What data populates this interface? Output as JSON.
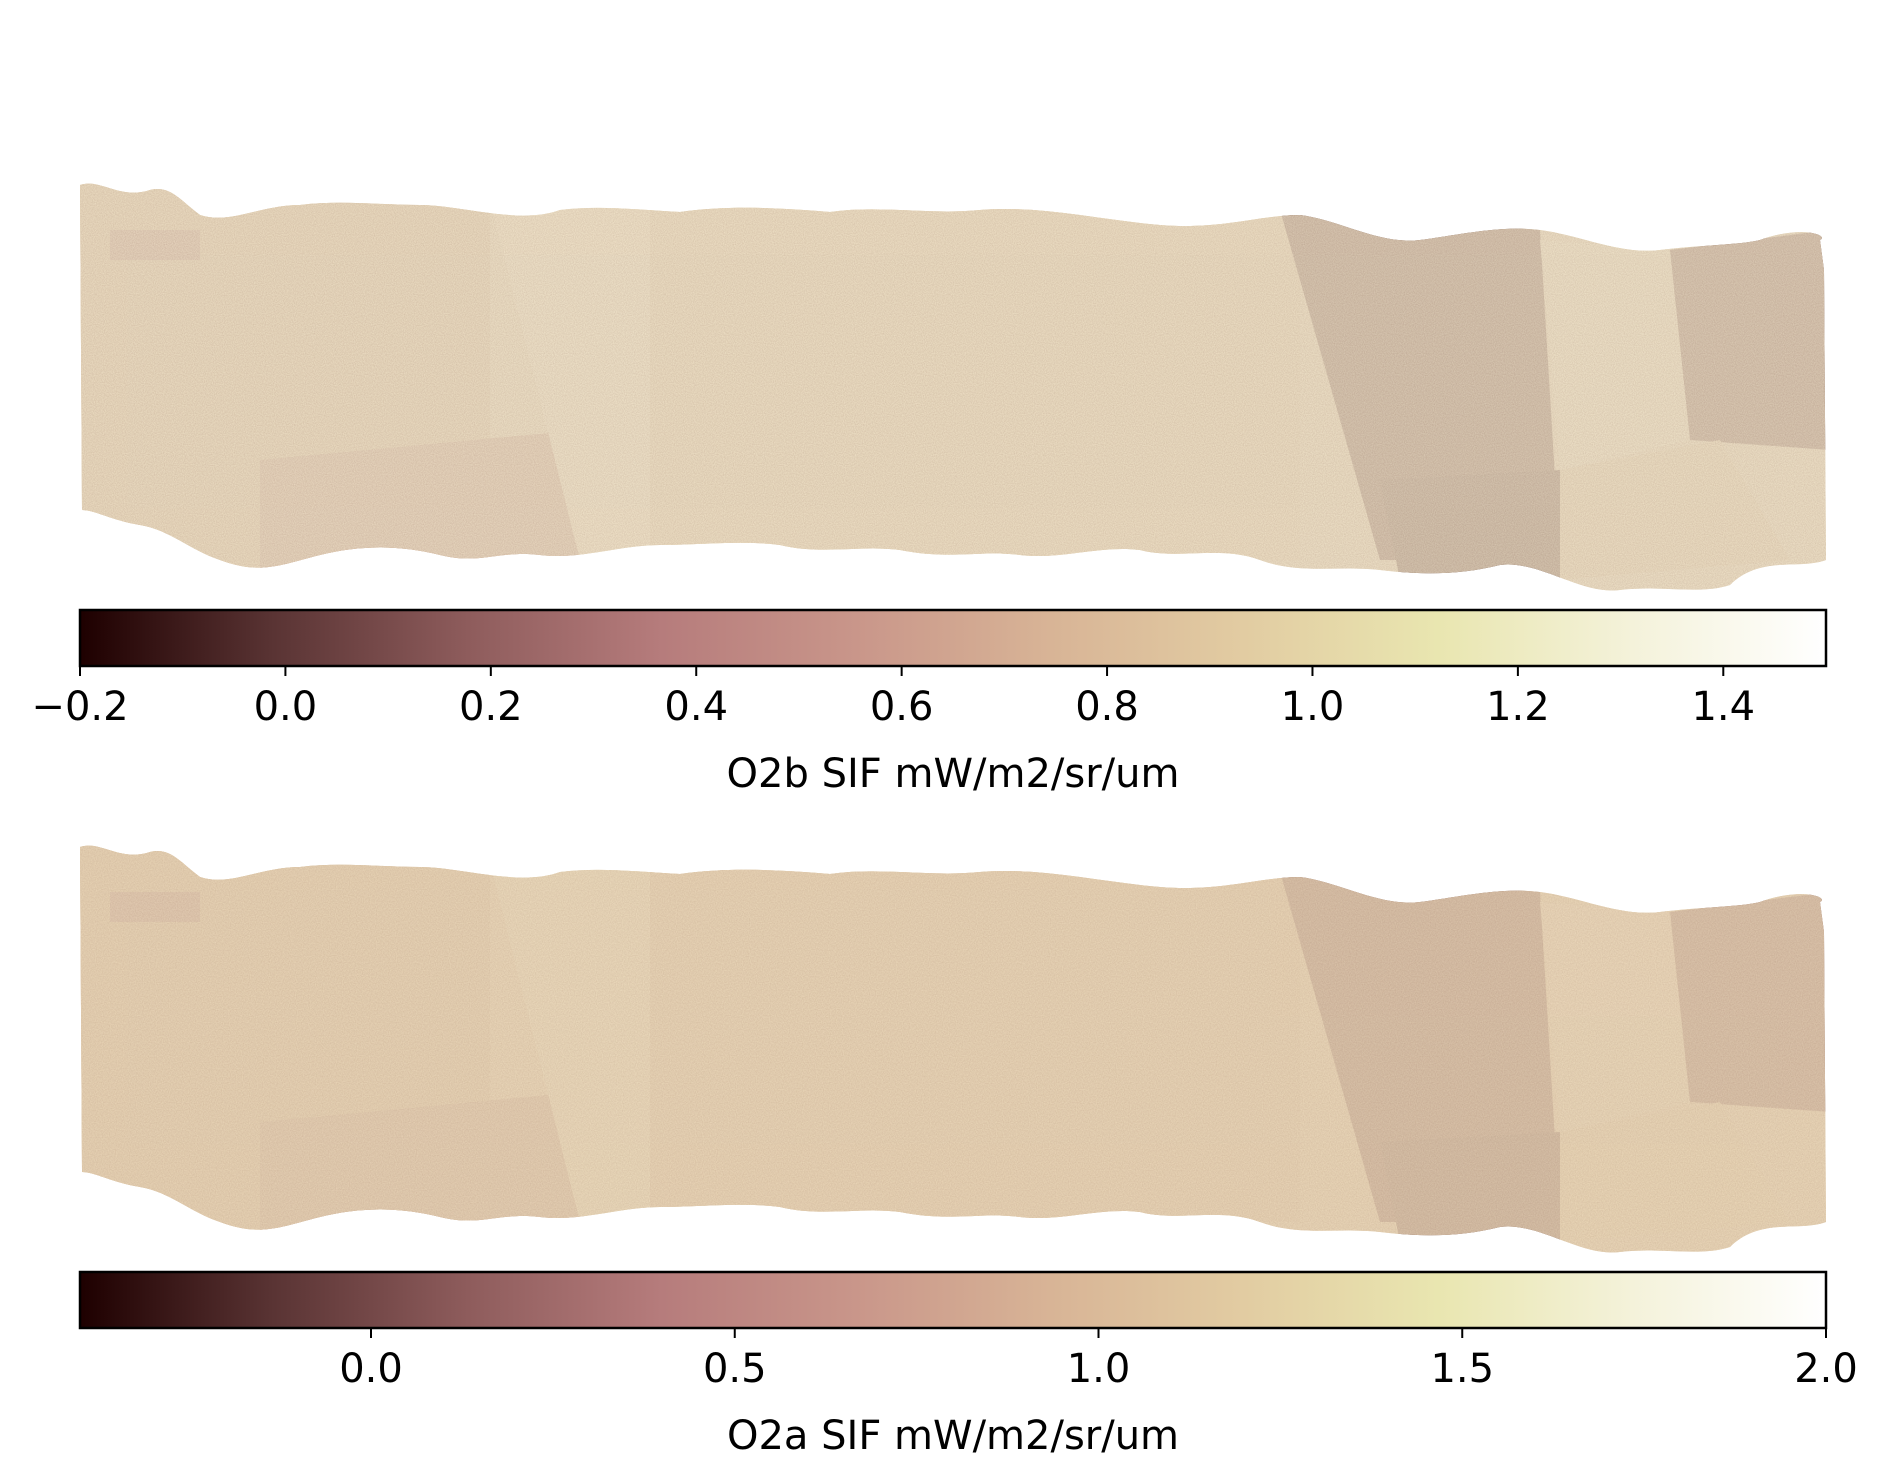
{
  "chart_data": [
    {
      "type": "heatmap",
      "description_kind": "map",
      "colormap": "pink",
      "colorbar": {
        "label": "O2b SIF mW/m2/sr/um",
        "vmin": -0.2,
        "vmax": 1.5,
        "ticks": [
          -0.2,
          0.0,
          0.2,
          0.4,
          0.6,
          0.8,
          1.0,
          1.2,
          1.4
        ],
        "tick_labels": [
          "−0.2",
          "0.0",
          "0.2",
          "0.4",
          "0.6",
          "0.8",
          "1.0",
          "1.2",
          "1.4"
        ]
      }
    },
    {
      "type": "heatmap",
      "description_kind": "map",
      "colormap": "pink",
      "colorbar": {
        "label": "O2a SIF mW/m2/sr/um",
        "vmin": -0.4,
        "vmax": 2.0,
        "ticks": [
          0.0,
          0.5,
          1.0,
          1.5,
          2.0
        ],
        "tick_labels": [
          "0.0",
          "0.5",
          "1.0",
          "1.5",
          "2.0"
        ]
      }
    }
  ],
  "colors": {
    "pink_stops": [
      "#1e0000",
      "#5a3434",
      "#8e5c5c",
      "#b67c7c",
      "#c9968a",
      "#d8b496",
      "#e2cca2",
      "#e9e6b0",
      "#f4f2da",
      "#ffffff"
    ]
  }
}
